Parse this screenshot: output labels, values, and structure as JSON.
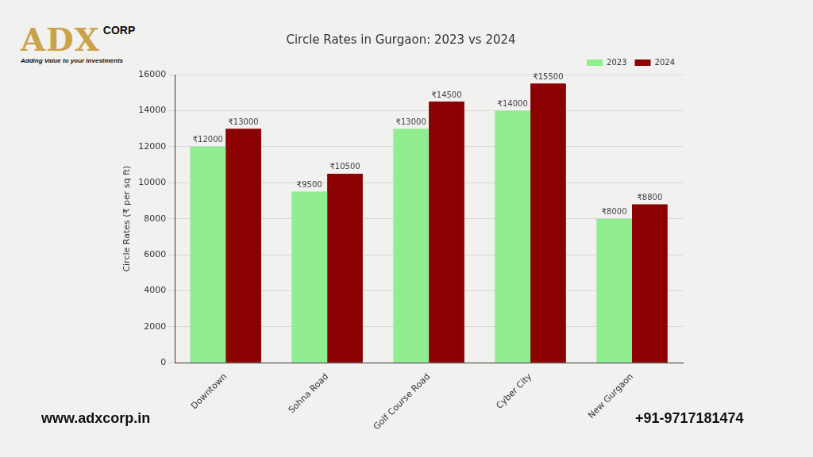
{
  "chart_data": {
    "type": "bar",
    "title": "Circle Rates in Gurgaon: 2023 vs 2024",
    "y_label": "Circle Rates (₹ per sq ft)",
    "categories": [
      "Downtown",
      "Sohna Road",
      "Golf Course Road",
      "Cyber City",
      "New Gurgaon"
    ],
    "series": [
      {
        "name": "2023",
        "color": "#90ee90",
        "values": [
          12000,
          9500,
          13000,
          14000,
          8000
        ],
        "value_labels": [
          "₹12000",
          "₹9500",
          "₹13000",
          "₹14000",
          "₹8000"
        ]
      },
      {
        "name": "2024",
        "color": "#8b0000",
        "values": [
          13000,
          10500,
          14500,
          15500,
          8800
        ],
        "value_labels": [
          "₹13000",
          "₹10500",
          "₹14500",
          "₹15500",
          "₹8800"
        ]
      }
    ],
    "ylim": [
      0,
      16000
    ],
    "yticks": [
      0,
      2000,
      4000,
      6000,
      8000,
      10000,
      12000,
      14000,
      16000
    ],
    "grid": true,
    "legend": "upper right",
    "data_labels": true
  },
  "branding": {
    "logo": "ADX",
    "logo_suffix": "CORP",
    "tagline": "Adding Value to your Investments",
    "website": "www.adxcorp.in",
    "phone": "+91-9717181474"
  }
}
